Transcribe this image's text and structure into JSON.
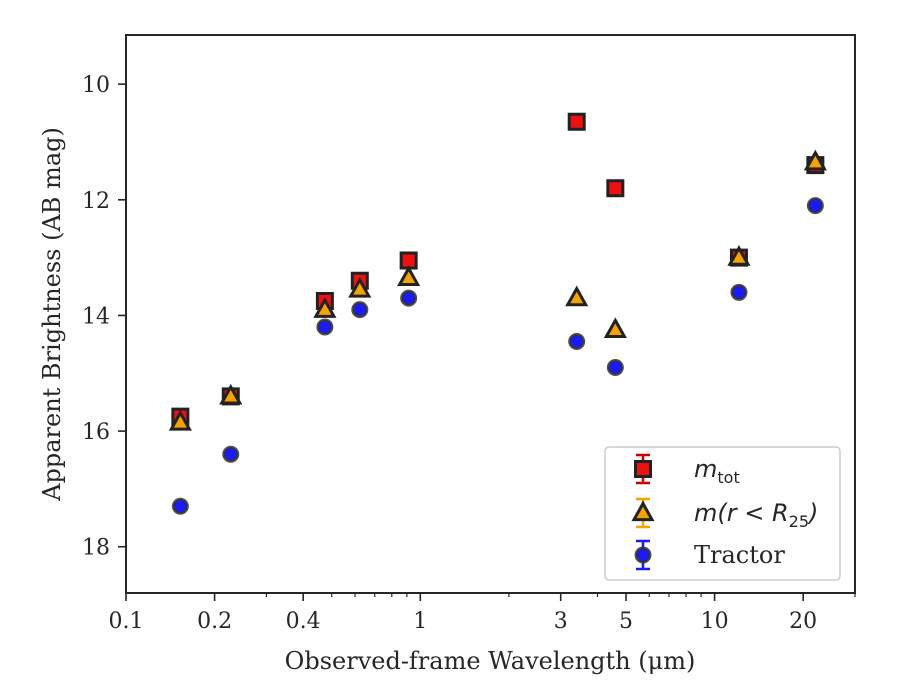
{
  "chart_data": {
    "type": "scatter",
    "xlabel": "Observed-frame Wavelength (μm)",
    "ylabel": "Apparent Brightness (AB mag)",
    "x_scale": "log",
    "xlim": [
      0.1,
      30
    ],
    "ylim": [
      18.8,
      9.15
    ],
    "y_inverted": true,
    "grid": false,
    "legend_position": "bottom-right",
    "x_ticks": [
      {
        "value": 0.1,
        "label": "0.1"
      },
      {
        "value": 0.2,
        "label": "0.2"
      },
      {
        "value": 0.4,
        "label": "0.4"
      },
      {
        "value": 1,
        "label": "1"
      },
      {
        "value": 3,
        "label": "3"
      },
      {
        "value": 5,
        "label": "5"
      },
      {
        "value": 10,
        "label": "10"
      },
      {
        "value": 20,
        "label": "20"
      }
    ],
    "y_ticks": [
      {
        "value": 10,
        "label": "10"
      },
      {
        "value": 12,
        "label": "12"
      },
      {
        "value": 14,
        "label": "14"
      },
      {
        "value": 16,
        "label": "16"
      },
      {
        "value": 18,
        "label": "18"
      }
    ],
    "series": [
      {
        "name": "m_tot",
        "marker": "square",
        "color": "#ee1111",
        "edge_color": "#222222",
        "errorbar_color": "#cc0000",
        "x": [
          0.153,
          0.227,
          0.474,
          0.623,
          0.913,
          3.4,
          4.6,
          12.1,
          22.0
        ],
        "y": [
          15.75,
          15.4,
          13.75,
          13.4,
          13.05,
          10.65,
          11.8,
          13.0,
          11.4
        ]
      },
      {
        "name": "m(r<R25)",
        "marker": "triangle",
        "color": "#f5a300",
        "edge_color": "#222222",
        "errorbar_color": "#f5a300",
        "x": [
          0.153,
          0.227,
          0.474,
          0.623,
          0.913,
          3.4,
          4.6,
          12.1,
          22.0
        ],
        "y": [
          15.85,
          15.4,
          13.9,
          13.55,
          13.35,
          13.7,
          14.25,
          13.0,
          11.35
        ]
      },
      {
        "name": "Tractor",
        "marker": "circle",
        "color": "#1a1aff",
        "edge_color": "#333333",
        "errorbar_color": "#1a1aff",
        "x": [
          0.153,
          0.227,
          0.474,
          0.623,
          0.913,
          3.4,
          4.6,
          12.1,
          22.0
        ],
        "y": [
          17.3,
          16.4,
          14.2,
          13.9,
          13.7,
          14.45,
          14.9,
          13.6,
          12.1
        ]
      }
    ],
    "legend": [
      {
        "marker": "square",
        "base": "m",
        "sub": "tot",
        "tail": ""
      },
      {
        "marker": "triangle",
        "base": "m(r < R",
        "sub": "25",
        "tail": ")"
      },
      {
        "marker": "circle",
        "base": "Tractor",
        "sub": "",
        "tail": ""
      }
    ]
  }
}
